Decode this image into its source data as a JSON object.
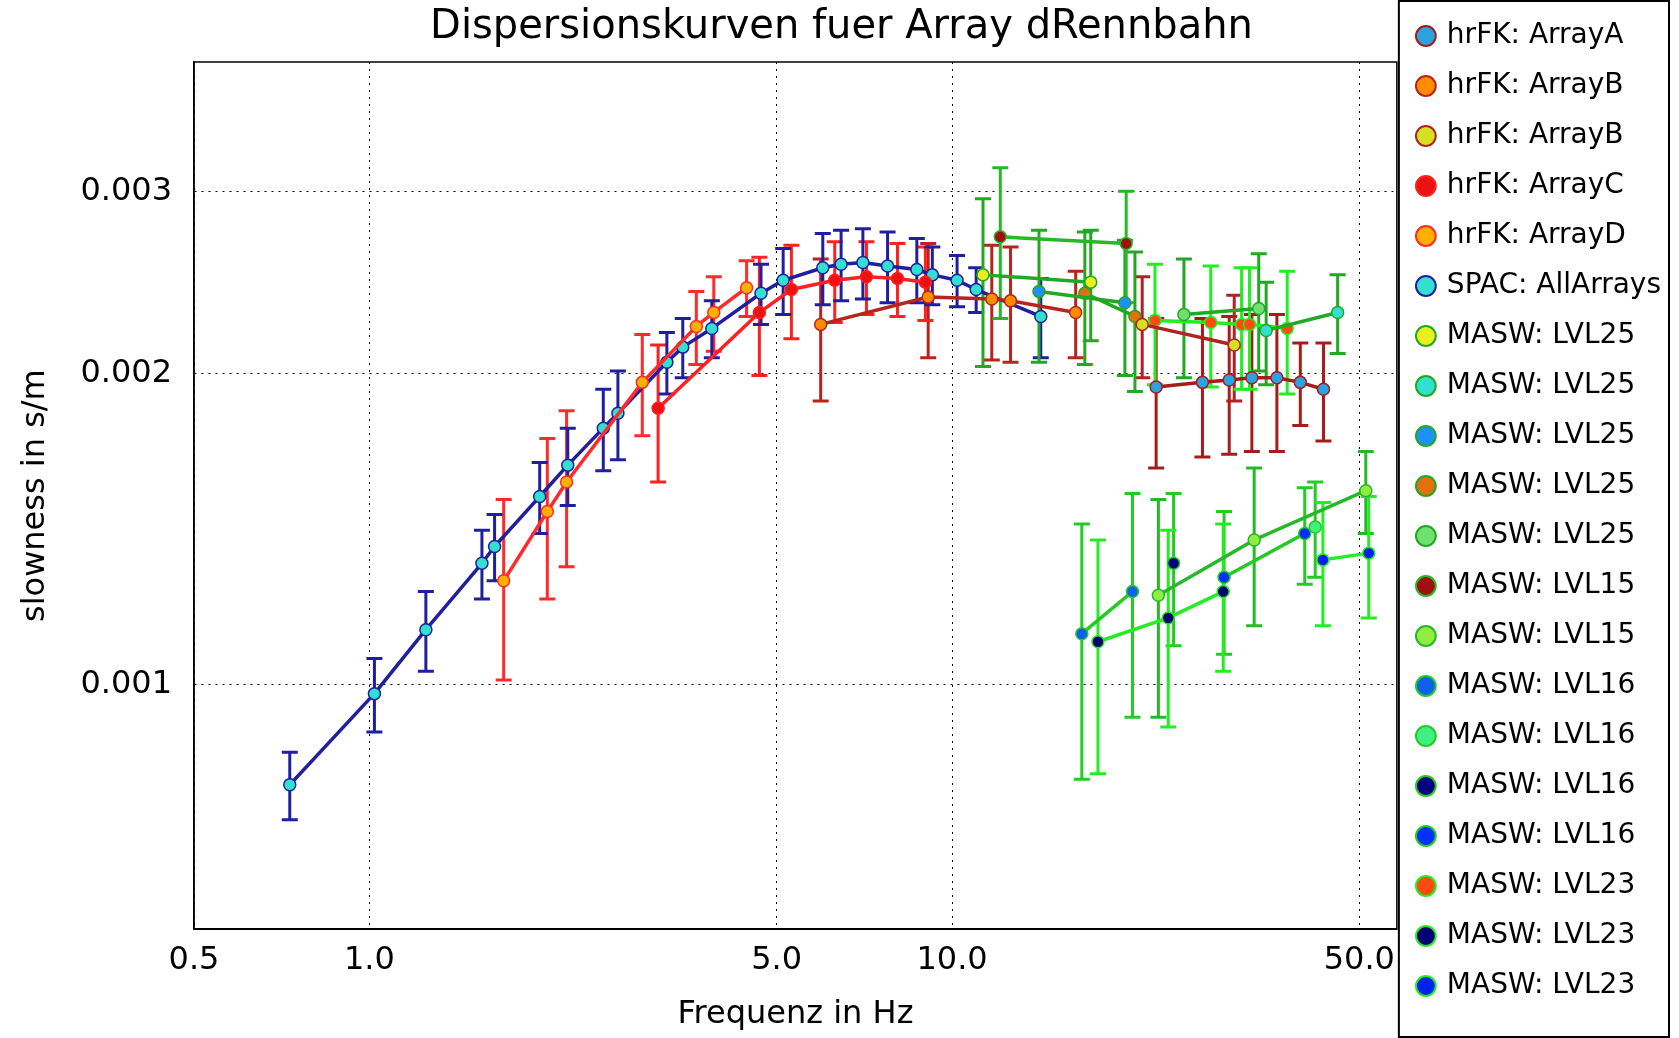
{
  "chart_data": {
    "type": "line",
    "title": "Dispersionskurven fuer Array dRennbahn",
    "xlabel": "Frequenz in Hz",
    "ylabel": "slowness in s/m",
    "log": "xy",
    "xlim": [
      0.5,
      58
    ],
    "ylim": [
      0.00058,
      0.004
    ],
    "xticks": [
      {
        "value": 0.5,
        "label": "0.5"
      },
      {
        "value": 1,
        "label": "1.0"
      },
      {
        "value": 5,
        "label": "5.0"
      },
      {
        "value": 10,
        "label": "10.0"
      },
      {
        "value": 50,
        "label": "50.0"
      }
    ],
    "yticks": [
      0.001,
      0.002,
      0.003
    ],
    "grid": true,
    "legend": "right",
    "marker": "circle",
    "line_style": "solid",
    "series": [
      {
        "name": "hrFK: ArrayA",
        "color": "#a61c1c",
        "x": [
          22.4,
          26.9,
          29.9,
          32.7,
          36.1,
          39.6,
          43.4
        ],
        "values": [
          0.00194,
          0.00196,
          0.00197,
          0.00198,
          0.00198,
          0.00196,
          0.00193
        ],
        "errors": [
          0.00032,
          0.0003,
          0.0003,
          0.0003,
          0.0003,
          0.00018,
          0.00021
        ],
        "colors": [
          "#2ba3e0",
          "#2ba3e0",
          "#2ba3e0",
          "#2ba3e0",
          "#2ba3e0",
          "#2ba3e0",
          "#2ba3e0"
        ]
      },
      {
        "name": "hrFK: ArrayB",
        "color": "#b8241c",
        "x": [
          5.95,
          9.1,
          11.7,
          12.6,
          16.3
        ],
        "values": [
          0.00223,
          0.00237,
          0.00236,
          0.00235,
          0.00229
        ],
        "errors": [
          0.00035,
          0.0003,
          0.0003,
          0.0003,
          0.00022
        ],
        "colors": [
          "#ff8c00",
          "#ff8c00",
          "#ff8c00",
          "#ff8c00",
          "#ff8c00"
        ]
      },
      {
        "name": "hrFK: ArrayB",
        "color": "#b22222",
        "x": [
          21.2,
          30.5
        ],
        "values": [
          0.00223,
          0.00213
        ],
        "errors": [
          0.00025,
          0.00025
        ],
        "colors": [
          "#d4e020",
          "#d4e020"
        ]
      },
      {
        "name": "hrFK: ArrayC",
        "color": "#ff2020",
        "x": [
          3.13,
          4.67,
          5.3,
          6.29,
          7.13,
          8.06,
          9.0
        ],
        "values": [
          0.00185,
          0.00229,
          0.00241,
          0.00246,
          0.00248,
          0.00247,
          0.00245
        ],
        "errors": [
          0.00028,
          0.0003,
          0.00025,
          0.00022,
          0.0002,
          0.0002,
          0.0002
        ],
        "colors": [
          "#ee1111",
          "#ee1111",
          "#ee1111",
          "#ee1111",
          "#ee1111",
          "#ee1111",
          "#ee1111"
        ]
      },
      {
        "name": "hrFK: ArrayD",
        "color": "#ff2a2a",
        "x": [
          1.7,
          2.02,
          2.18,
          2.94,
          3.64,
          3.9,
          4.44
        ],
        "values": [
          0.00126,
          0.00147,
          0.00157,
          0.00196,
          0.00222,
          0.00229,
          0.00242
        ],
        "errors": [
          0.00025,
          0.00026,
          0.00027,
          0.00022,
          0.00018,
          0.00019,
          0.00015
        ],
        "colors": [
          "#ffb000",
          "#ffb000",
          "#ffb000",
          "#ffb000",
          "#ffb000",
          "#ffb000",
          "#ffb000"
        ]
      },
      {
        "name": "SPAC: AllArrays",
        "color": "#1f1fa0",
        "x": [
          0.73,
          1.02,
          1.25,
          1.56,
          1.64,
          1.96,
          2.19,
          2.52,
          2.67,
          3.24,
          3.45,
          3.87,
          4.7,
          5.13,
          6.0,
          6.45,
          7.03,
          7.75,
          8.7,
          9.25,
          10.2,
          11.0,
          14.2
        ],
        "values": [
          0.0008,
          0.00098,
          0.00113,
          0.00131,
          0.00136,
          0.00152,
          0.00163,
          0.00177,
          0.00183,
          0.00205,
          0.00212,
          0.00221,
          0.00239,
          0.00246,
          0.00253,
          0.00255,
          0.00256,
          0.00254,
          0.00252,
          0.00249,
          0.00246,
          0.00241,
          0.00227
        ],
        "errors": [
          6e-05,
          8e-05,
          0.0001,
          0.0001,
          0.0001,
          0.00012,
          0.00014,
          0.00016,
          0.00018,
          0.00014,
          0.00014,
          0.00014,
          0.00016,
          0.00018,
          0.0002,
          0.0002,
          0.0002,
          0.0002,
          0.00018,
          0.00016,
          0.00014,
          0.00012,
          0.0002
        ],
        "colors": [
          "#33e0d0",
          "#33e0d0",
          "#33e0d0",
          "#33e0d0",
          "#33e0d0",
          "#33e0d0",
          "#33e0d0",
          "#33e0d0",
          "#33e0d0",
          "#33e0d0",
          "#33e0d0",
          "#33e0d0",
          "#33e0d0",
          "#33e0d0",
          "#33e0d0",
          "#33e0d0",
          "#33e0d0",
          "#33e0d0",
          "#33e0d0",
          "#33e0d0",
          "#33e0d0",
          "#33e0d0",
          "#33e0d0"
        ]
      },
      {
        "name": "MASW: LVL25",
        "color": "#22a822",
        "x": [
          11.3,
          17.3
        ],
        "values": [
          0.00249,
          0.00245
        ],
        "errors": [
          0.00046,
          0.0003
        ],
        "colors": [
          "#e8f020",
          "#e8f020"
        ]
      },
      {
        "name": "MASW: LVL25",
        "color": "#22a822",
        "x": [
          34.6,
          45.9
        ],
        "values": [
          0.0022,
          0.00229
        ],
        "errors": [
          0.00025,
          0.0002
        ],
        "colors": [
          "#30e0d0",
          "#30e0d0"
        ]
      },
      {
        "name": "MASW: LVL25",
        "color": "#22a822",
        "x": [
          14.1,
          19.8
        ],
        "values": [
          0.0024,
          0.00234
        ],
        "errors": [
          0.00035,
          0.00035
        ],
        "colors": [
          "#1e90ff",
          "#1e90ff"
        ]
      },
      {
        "name": "MASW: LVL25",
        "color": "#22a822",
        "x": [
          16.9,
          20.6
        ],
        "values": [
          0.00239,
          0.00227
        ],
        "errors": [
          0.00035,
          0.00035
        ],
        "colors": [
          "#e07010",
          "#e07010"
        ]
      },
      {
        "name": "MASW: LVL25",
        "color": "#22a822",
        "x": [
          25.0,
          33.6
        ],
        "values": [
          0.00228,
          0.00231
        ],
        "errors": [
          0.0003,
          0.0003
        ],
        "colors": [
          "#70e070",
          "#70e070"
        ]
      },
      {
        "name": "MASW: LVL15",
        "color": "#26b826",
        "x": [
          12.1,
          19.9
        ],
        "values": [
          0.00271,
          0.00267
        ],
        "errors": [
          0.00045,
          0.00033
        ],
        "colors": [
          "#a01010",
          "#a01010"
        ]
      },
      {
        "name": "MASW: LVL15",
        "color": "#26b826",
        "x": [
          22.6,
          33.0,
          51.3
        ],
        "values": [
          0.00122,
          0.00138,
          0.00154
        ],
        "errors": [
          0.00029,
          0.00024,
          0.00014
        ],
        "colors": [
          "#90ee40",
          "#90ee40",
          "#90ee40"
        ]
      },
      {
        "name": "MASW: LVL16",
        "color": "#22cc22",
        "x": [
          16.7,
          20.4
        ],
        "values": [
          0.00112,
          0.00123
        ],
        "errors": [
          0.00031,
          0.0003
        ],
        "colors": [
          "#1060ee",
          "#1060ee"
        ]
      },
      {
        "name": "MASW: LVL16",
        "color": "#22cc22",
        "x": [
          42.0
        ],
        "values": [
          0.00142
        ],
        "errors": [
          0.00015
        ],
        "colors": [
          "#40f080"
        ]
      },
      {
        "name": "MASW: LVL16",
        "color": "#22cc22",
        "x": [
          24.0
        ],
        "values": [
          0.00131
        ],
        "errors": [
          0.00022
        ],
        "colors": [
          "#000080"
        ]
      },
      {
        "name": "MASW: LVL16",
        "color": "#22cc22",
        "x": [
          29.3,
          40.3
        ],
        "values": [
          0.00127,
          0.0014
        ],
        "errors": [
          0.0002,
          0.00015
        ],
        "colors": [
          "#0030ff",
          "#0030ff"
        ]
      },
      {
        "name": "MASW: LVL23",
        "color": "#22ee22",
        "x": [
          22.3,
          27.8,
          31.4,
          32.4,
          37.6
        ],
        "values": [
          0.00225,
          0.00224,
          0.00223,
          0.00223,
          0.00221
        ],
        "errors": [
          0.0003,
          0.0003,
          0.0003,
          0.0003,
          0.0003
        ],
        "colors": [
          "#ff4a10",
          "#ff4a10",
          "#ff4a10",
          "#ff4a10",
          "#ff4a10"
        ]
      },
      {
        "name": "MASW: LVL23",
        "color": "#22ee22",
        "x": [
          17.8,
          23.5,
          29.2
        ],
        "values": [
          0.0011,
          0.00116,
          0.00123
        ],
        "errors": [
          0.00028,
          0.00025,
          0.0002
        ],
        "colors": [
          "#000070",
          "#000070",
          "#000070"
        ]
      },
      {
        "name": "MASW: LVL23",
        "color": "#22ee22",
        "x": [
          43.3,
          51.9
        ],
        "values": [
          0.00132,
          0.00134
        ],
        "errors": [
          0.00018,
          0.00018
        ],
        "colors": [
          "#0020ee",
          "#0020ee"
        ]
      }
    ]
  }
}
